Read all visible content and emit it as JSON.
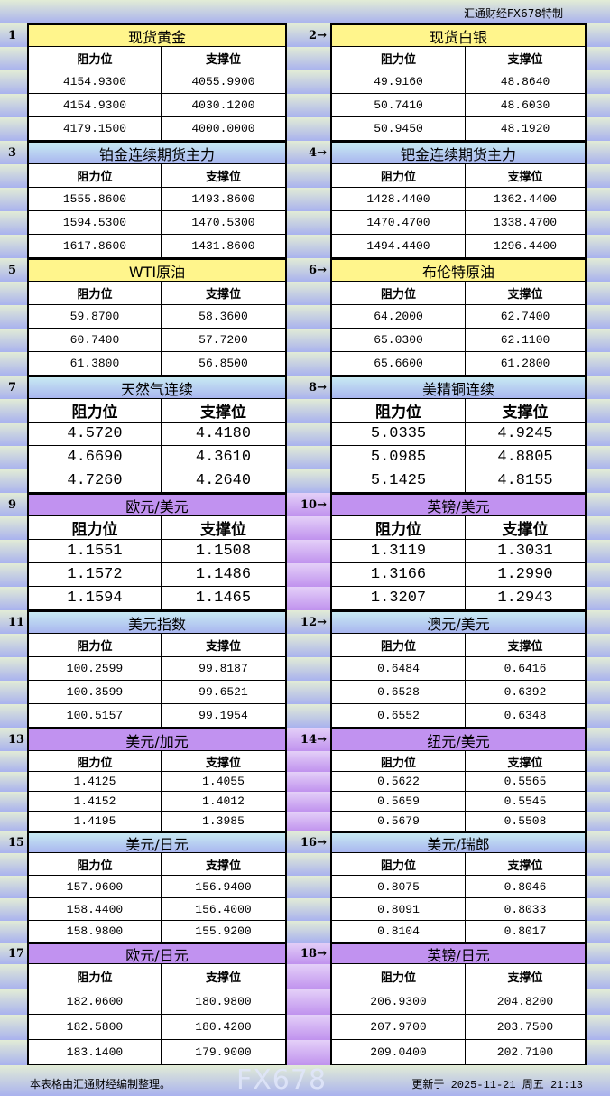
{
  "header": {
    "brand": "汇通财经FX678特制"
  },
  "columns": {
    "resistance": "阻力位",
    "support": "支撑位"
  },
  "blocks": [
    {
      "left": {
        "num": "1",
        "title": "现货黄金",
        "rows": [
          [
            "4154.9300",
            "4055.9900"
          ],
          [
            "4154.9300",
            "4030.1200"
          ],
          [
            "4179.1500",
            "4000.0000"
          ]
        ]
      },
      "right": {
        "num": "2→",
        "title": "现货白银",
        "rows": [
          [
            "49.9160",
            "48.8640"
          ],
          [
            "50.7410",
            "48.6030"
          ],
          [
            "50.9450",
            "48.1920"
          ]
        ]
      },
      "theme": "yellow"
    },
    {
      "left": {
        "num": "3",
        "title": "铂金连续期货主力",
        "rows": [
          [
            "1555.8600",
            "1493.8600"
          ],
          [
            "1594.5300",
            "1470.5300"
          ],
          [
            "1617.8600",
            "1431.8600"
          ]
        ]
      },
      "right": {
        "num": "4→",
        "title": "钯金连续期货主力",
        "rows": [
          [
            "1428.4400",
            "1362.4400"
          ],
          [
            "1470.4700",
            "1338.4700"
          ],
          [
            "1494.4400",
            "1296.4400"
          ]
        ]
      },
      "theme": "blue"
    },
    {
      "left": {
        "num": "5",
        "title": "WTI原油",
        "rows": [
          [
            "59.8700",
            "58.3600"
          ],
          [
            "60.7400",
            "57.7200"
          ],
          [
            "61.3800",
            "56.8500"
          ]
        ]
      },
      "right": {
        "num": "6→",
        "title": "布伦特原油",
        "rows": [
          [
            "64.2000",
            "62.7400"
          ],
          [
            "65.0300",
            "62.1100"
          ],
          [
            "65.6600",
            "61.2800"
          ]
        ]
      },
      "theme": "yellow"
    },
    {
      "left": {
        "num": "7",
        "title": "天然气连续",
        "rows": [
          [
            "4.5720",
            "4.4180"
          ],
          [
            "4.6690",
            "4.3610"
          ],
          [
            "4.7260",
            "4.2640"
          ]
        ]
      },
      "right": {
        "num": "8→",
        "title": "美精铜连续",
        "rows": [
          [
            "5.0335",
            "4.9245"
          ],
          [
            "5.0985",
            "4.8805"
          ],
          [
            "5.1425",
            "4.8155"
          ]
        ]
      },
      "theme": "blue"
    },
    {
      "left": {
        "num": "9",
        "title": "欧元/美元",
        "rows": [
          [
            "1.1551",
            "1.1508"
          ],
          [
            "1.1572",
            "1.1486"
          ],
          [
            "1.1594",
            "1.1465"
          ]
        ]
      },
      "right": {
        "num": "10→",
        "title": "英镑/美元",
        "rows": [
          [
            "1.3119",
            "1.3031"
          ],
          [
            "1.3166",
            "1.2990"
          ],
          [
            "1.3207",
            "1.2943"
          ]
        ]
      },
      "theme": "purple"
    },
    {
      "left": {
        "num": "11",
        "title": "美元指数",
        "rows": [
          [
            "100.2599",
            "99.8187"
          ],
          [
            "100.3599",
            "99.6521"
          ],
          [
            "100.5157",
            "99.1954"
          ]
        ]
      },
      "right": {
        "num": "12→",
        "title": "澳元/美元",
        "rows": [
          [
            "0.6484",
            "0.6416"
          ],
          [
            "0.6528",
            "0.6392"
          ],
          [
            "0.6552",
            "0.6348"
          ]
        ]
      },
      "theme": "blue"
    },
    {
      "left": {
        "num": "13",
        "title": "美元/加元",
        "rows": [
          [
            "1.4125",
            "1.4055"
          ],
          [
            "1.4152",
            "1.4012"
          ],
          [
            "1.4195",
            "1.3985"
          ]
        ]
      },
      "right": {
        "num": "14→",
        "title": "纽元/美元",
        "rows": [
          [
            "0.5622",
            "0.5565"
          ],
          [
            "0.5659",
            "0.5545"
          ],
          [
            "0.5679",
            "0.5508"
          ]
        ]
      },
      "theme": "purple"
    },
    {
      "left": {
        "num": "15",
        "title": "美元/日元",
        "rows": [
          [
            "157.9600",
            "156.9400"
          ],
          [
            "158.4400",
            "156.4000"
          ],
          [
            "158.9800",
            "155.9200"
          ]
        ]
      },
      "right": {
        "num": "16→",
        "title": "美元/瑞郎",
        "rows": [
          [
            "0.8075",
            "0.8046"
          ],
          [
            "0.8091",
            "0.8033"
          ],
          [
            "0.8104",
            "0.8017"
          ]
        ]
      },
      "theme": "blue"
    },
    {
      "left": {
        "num": "17",
        "title": "欧元/日元",
        "rows": [
          [
            "182.0600",
            "180.9800"
          ],
          [
            "182.5800",
            "180.4200"
          ],
          [
            "183.1400",
            "179.9000"
          ]
        ]
      },
      "right": {
        "num": "18→",
        "title": "英镑/日元",
        "rows": [
          [
            "206.9300",
            "204.8200"
          ],
          [
            "207.9700",
            "203.7500"
          ],
          [
            "209.0400",
            "202.7100"
          ]
        ]
      },
      "theme": "purple"
    }
  ],
  "footer": {
    "note": "本表格由汇通财经编制整理。",
    "updated": "更新于 2025-11-21 周五 21:13"
  },
  "watermark": "FX678"
}
